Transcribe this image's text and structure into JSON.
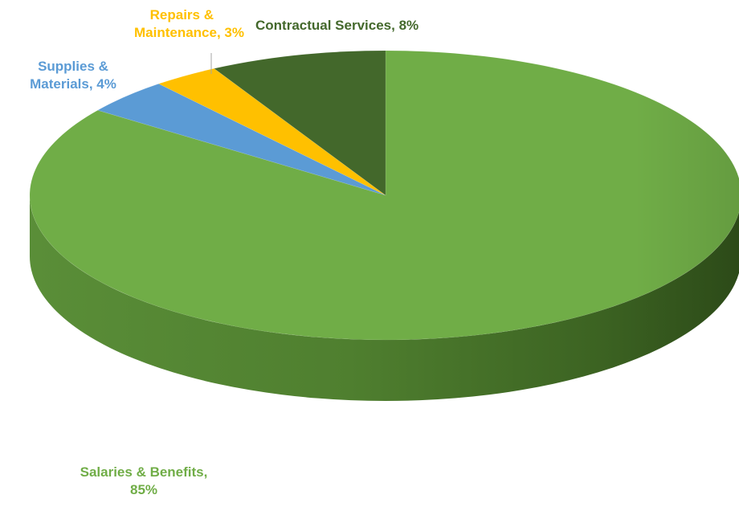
{
  "chart_data": {
    "type": "pie",
    "title": "",
    "slices": [
      {
        "label": "Salaries & Benefits",
        "value": 85,
        "display": "85%",
        "color": "#70AD47"
      },
      {
        "label": "Supplies & Materials",
        "value": 4,
        "display": "4%",
        "color": "#5B9BD5"
      },
      {
        "label": "Repairs & Maintenance",
        "value": 3,
        "display": "3%",
        "color": "#FFC000"
      },
      {
        "label": "Contractual Services",
        "value": 8,
        "display": "8%",
        "color": "#43682B"
      }
    ]
  },
  "labels": {
    "salaries_line1": "Salaries & Benefits,",
    "salaries_line2": "85%",
    "supplies_line1": "Supplies &",
    "supplies_line2": "Materials, 4%",
    "repairs_line1": "Repairs &",
    "repairs_line2": "Maintenance, 3%",
    "contractual": "Contractual Services, 8%"
  }
}
